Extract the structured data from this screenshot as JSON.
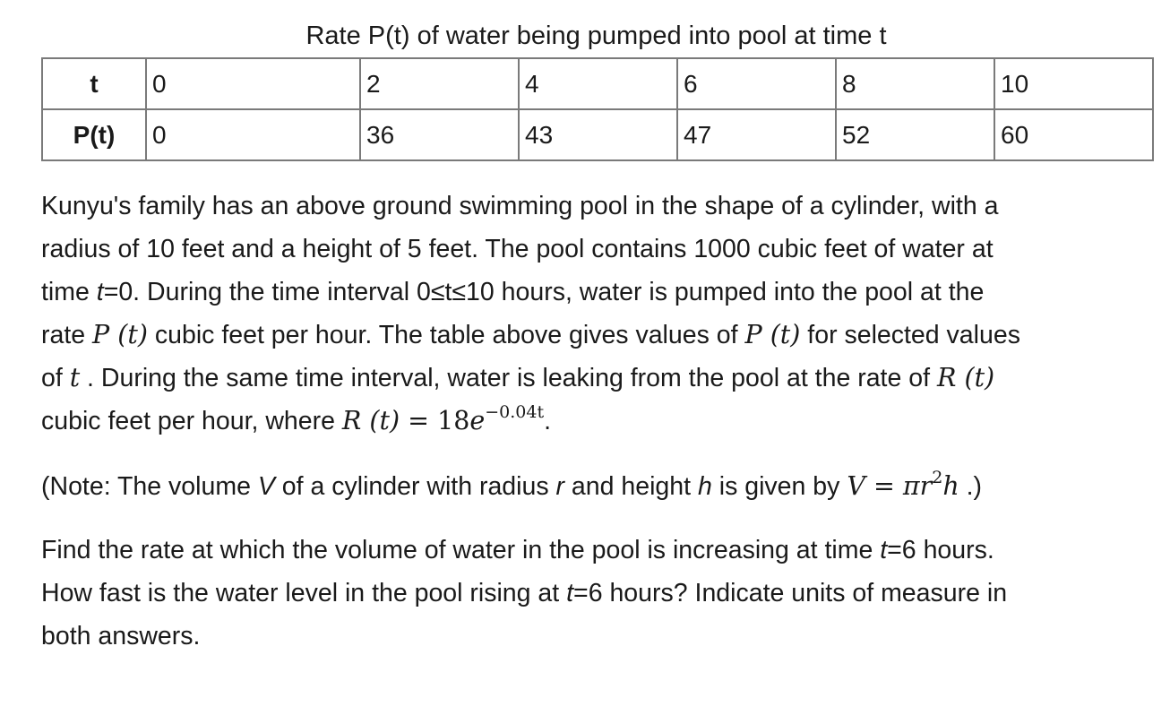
{
  "table": {
    "caption": "Rate P(t) of water being pumped into pool at time t",
    "row_t_label": "t",
    "row_p_label": "P(t)",
    "t_values": [
      "0",
      "2",
      "4",
      "6",
      "8",
      "10"
    ],
    "p_values": [
      "0",
      "36",
      "43",
      "47",
      "52",
      "60"
    ]
  },
  "problem": {
    "line1": "Kunyu's family has an above ground swimming pool in the shape of a cylinder, with a",
    "line2": "radius of 10 feet and a height of 5 feet. The pool contains 1000 cubic feet of water at",
    "line3_a": "time ",
    "line3_var": "t",
    "line3_b": "=0. During the time interval 0≤t≤10 hours, water is pumped into the pool at the",
    "line4_a": "rate ",
    "math_Pt": "P (t)",
    "line4_b": " cubic feet per hour. The table above gives values of ",
    "line4_c": " for selected values",
    "line5_a": "of ",
    "math_t": "t",
    "line5_b": " . During the same time interval, water is leaking from the pool at the rate of ",
    "math_Rt": "R (t)",
    "line6_a": "cubic feet per hour, where ",
    "math_eq": " = 18",
    "math_e": "e",
    "math_exp": "−0.04t",
    "line6_end": "."
  },
  "note": {
    "a": "(Note: The volume ",
    "V": "V",
    "b": " of a cylinder with radius ",
    "r": "r",
    "c": " and height ",
    "h": "h",
    "d": " is given by ",
    "formula_lhs": "V = πr",
    "formula_exp": "2",
    "formula_h": "h",
    "end": " .)"
  },
  "question": {
    "line1_a": "Find the rate at which the volume of water in the pool is increasing at time ",
    "line1_var": "t",
    "line1_b": "=6 hours.",
    "line2_a": "How fast is the water level in the pool rising at ",
    "line2_var": "t",
    "line2_b": "=6 hours? Indicate units of measure in",
    "line3": "both answers."
  }
}
